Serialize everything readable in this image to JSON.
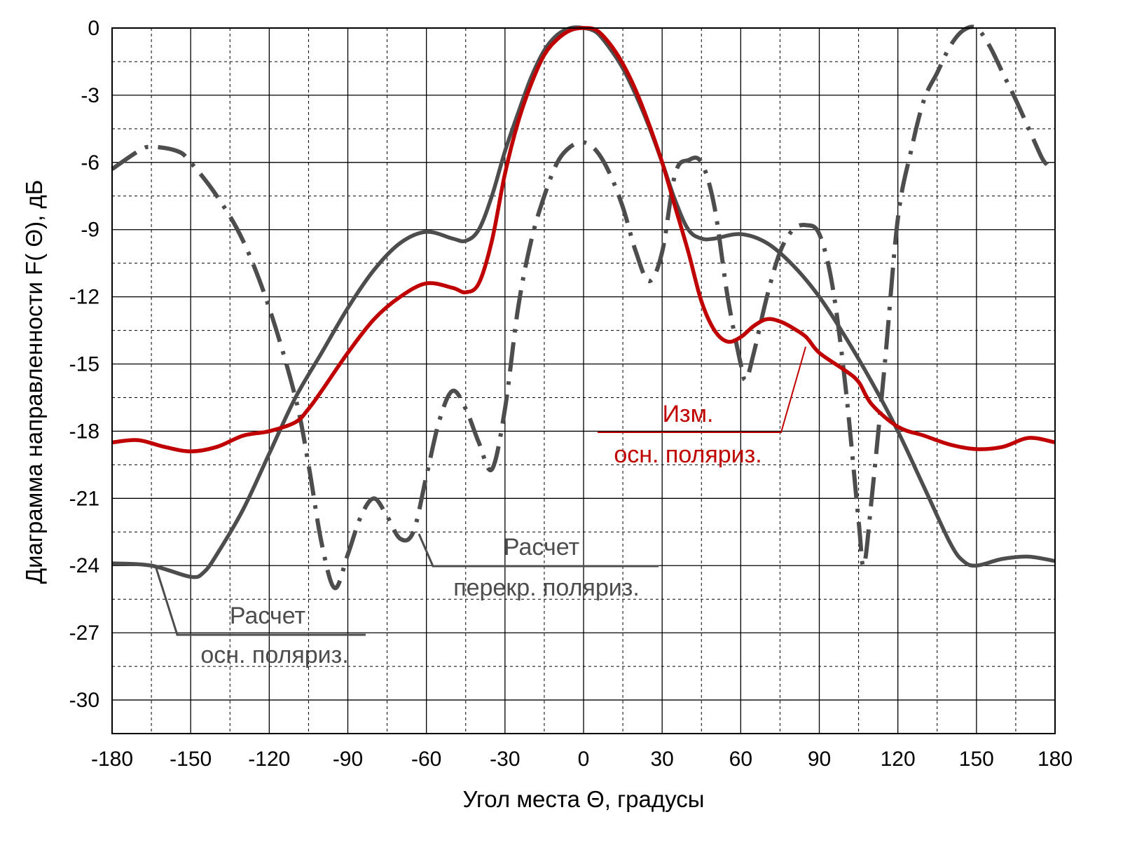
{
  "chart_data": {
    "type": "line",
    "title": "",
    "xlabel": "Угол места  Θ, градусы",
    "ylabel": "Диаграмма направленности F( Θ), дБ",
    "xlim": [
      -180,
      180
    ],
    "ylim": [
      -31.5,
      0
    ],
    "xticks": [
      -180,
      -150,
      -120,
      -90,
      -60,
      -30,
      0,
      30,
      60,
      90,
      120,
      150,
      180
    ],
    "yticks": [
      0,
      -3,
      -6,
      -9,
      -12,
      -15,
      -18,
      -21,
      -24,
      -27,
      -30
    ],
    "grid": true,
    "series": [
      {
        "name": "Расчет осн. поляриз.",
        "label_line1": "Расчет",
        "label_line2": "осн. поляриз.",
        "color": "#4d4d4d",
        "style": "solid",
        "points": [
          [
            -180,
            -23.9
          ],
          [
            -165,
            -24.0
          ],
          [
            -150,
            -24.5
          ],
          [
            -145,
            -24.3
          ],
          [
            -140,
            -23.5
          ],
          [
            -130,
            -21.5
          ],
          [
            -120,
            -19.0
          ],
          [
            -110,
            -16.5
          ],
          [
            -100,
            -14.5
          ],
          [
            -90,
            -12.5
          ],
          [
            -80,
            -10.8
          ],
          [
            -70,
            -9.6
          ],
          [
            -60,
            -9.1
          ],
          [
            -50,
            -9.4
          ],
          [
            -45,
            -9.5
          ],
          [
            -40,
            -9.0
          ],
          [
            -35,
            -7.5
          ],
          [
            -30,
            -5.5
          ],
          [
            -25,
            -3.8
          ],
          [
            -20,
            -2.2
          ],
          [
            -15,
            -1.0
          ],
          [
            -10,
            -0.3
          ],
          [
            -5,
            0
          ],
          [
            0,
            0
          ],
          [
            5,
            -0.2
          ],
          [
            10,
            -0.9
          ],
          [
            15,
            -1.8
          ],
          [
            20,
            -3.0
          ],
          [
            25,
            -4.4
          ],
          [
            30,
            -6.0
          ],
          [
            35,
            -7.7
          ],
          [
            40,
            -9.0
          ],
          [
            45,
            -9.4
          ],
          [
            50,
            -9.4
          ],
          [
            60,
            -9.2
          ],
          [
            70,
            -9.6
          ],
          [
            80,
            -10.6
          ],
          [
            90,
            -12.0
          ],
          [
            100,
            -13.8
          ],
          [
            110,
            -15.8
          ],
          [
            120,
            -18.0
          ],
          [
            130,
            -20.5
          ],
          [
            140,
            -23.0
          ],
          [
            145,
            -23.8
          ],
          [
            150,
            -24.0
          ],
          [
            160,
            -23.7
          ],
          [
            170,
            -23.6
          ],
          [
            180,
            -23.8
          ]
        ]
      },
      {
        "name": "Расчет перекр. поляриз.",
        "label_line1": "Расчет",
        "label_line2": "перекр. поляриз.",
        "color": "#4d4d4d",
        "style": "dashdot",
        "points": [
          [
            -180,
            -6.3
          ],
          [
            -170,
            -5.5
          ],
          [
            -165,
            -5.3
          ],
          [
            -155,
            -5.5
          ],
          [
            -150,
            -6.0
          ],
          [
            -140,
            -7.5
          ],
          [
            -130,
            -9.5
          ],
          [
            -120,
            -12.5
          ],
          [
            -110,
            -16.5
          ],
          [
            -105,
            -19.5
          ],
          [
            -100,
            -23.0
          ],
          [
            -95,
            -25.0
          ],
          [
            -90,
            -23.5
          ],
          [
            -85,
            -21.8
          ],
          [
            -80,
            -21.0
          ],
          [
            -75,
            -21.8
          ],
          [
            -70,
            -22.8
          ],
          [
            -65,
            -22.5
          ],
          [
            -60,
            -20.0
          ],
          [
            -55,
            -17.5
          ],
          [
            -50,
            -16.2
          ],
          [
            -45,
            -17.0
          ],
          [
            -40,
            -18.5
          ],
          [
            -35,
            -19.7
          ],
          [
            -30,
            -17.0
          ],
          [
            -25,
            -12.5
          ],
          [
            -20,
            -9.5
          ],
          [
            -15,
            -7.5
          ],
          [
            -10,
            -6.0
          ],
          [
            -5,
            -5.3
          ],
          [
            0,
            -5.1
          ],
          [
            5,
            -5.5
          ],
          [
            10,
            -6.5
          ],
          [
            15,
            -8.0
          ],
          [
            20,
            -10.0
          ],
          [
            25,
            -11.3
          ],
          [
            30,
            -10.0
          ],
          [
            35,
            -6.5
          ],
          [
            40,
            -5.9
          ],
          [
            45,
            -6.0
          ],
          [
            50,
            -8.0
          ],
          [
            55,
            -12.0
          ],
          [
            60,
            -15.0
          ],
          [
            62,
            -15.7
          ],
          [
            65,
            -14.5
          ],
          [
            70,
            -12.0
          ],
          [
            75,
            -10.0
          ],
          [
            80,
            -9.0
          ],
          [
            85,
            -8.8
          ],
          [
            90,
            -9.2
          ],
          [
            95,
            -11.5
          ],
          [
            100,
            -16.0
          ],
          [
            105,
            -22.0
          ],
          [
            107,
            -24.0
          ],
          [
            110,
            -21.0
          ],
          [
            115,
            -15.0
          ],
          [
            120,
            -8.5
          ],
          [
            125,
            -5.5
          ],
          [
            130,
            -3.2
          ],
          [
            135,
            -2.0
          ],
          [
            140,
            -0.8
          ],
          [
            145,
            -0.1
          ],
          [
            150,
            0
          ],
          [
            155,
            -0.8
          ],
          [
            160,
            -2.0
          ],
          [
            165,
            -3.2
          ],
          [
            170,
            -4.5
          ],
          [
            175,
            -5.8
          ],
          [
            177,
            -6.1
          ]
        ]
      },
      {
        "name": "Изм. осн. поляриз.",
        "label_line1": "Изм.",
        "label_line2": "осн. поляриз.",
        "color": "#c00000",
        "style": "solid",
        "points": [
          [
            -180,
            -18.5
          ],
          [
            -170,
            -18.4
          ],
          [
            -160,
            -18.7
          ],
          [
            -150,
            -18.9
          ],
          [
            -140,
            -18.7
          ],
          [
            -130,
            -18.2
          ],
          [
            -120,
            -18.0
          ],
          [
            -110,
            -17.6
          ],
          [
            -105,
            -17.0
          ],
          [
            -100,
            -16.2
          ],
          [
            -90,
            -14.5
          ],
          [
            -80,
            -13.0
          ],
          [
            -70,
            -12.0
          ],
          [
            -60,
            -11.4
          ],
          [
            -50,
            -11.6
          ],
          [
            -45,
            -11.8
          ],
          [
            -40,
            -11.4
          ],
          [
            -35,
            -9.5
          ],
          [
            -30,
            -6.5
          ],
          [
            -25,
            -4.2
          ],
          [
            -20,
            -2.5
          ],
          [
            -15,
            -1.2
          ],
          [
            -10,
            -0.5
          ],
          [
            -5,
            -0.1
          ],
          [
            0,
            0
          ],
          [
            5,
            -0.1
          ],
          [
            10,
            -0.7
          ],
          [
            15,
            -1.6
          ],
          [
            20,
            -2.8
          ],
          [
            25,
            -4.3
          ],
          [
            30,
            -6.0
          ],
          [
            35,
            -8.0
          ],
          [
            40,
            -10.0
          ],
          [
            45,
            -12.2
          ],
          [
            50,
            -13.5
          ],
          [
            55,
            -14.0
          ],
          [
            60,
            -13.8
          ],
          [
            65,
            -13.3
          ],
          [
            70,
            -13.0
          ],
          [
            75,
            -13.1
          ],
          [
            80,
            -13.4
          ],
          [
            85,
            -13.8
          ],
          [
            90,
            -14.5
          ],
          [
            100,
            -15.3
          ],
          [
            105,
            -15.8
          ],
          [
            110,
            -16.8
          ],
          [
            120,
            -17.8
          ],
          [
            130,
            -18.2
          ],
          [
            140,
            -18.6
          ],
          [
            150,
            -18.8
          ],
          [
            160,
            -18.7
          ],
          [
            170,
            -18.3
          ],
          [
            180,
            -18.5
          ]
        ]
      }
    ]
  }
}
